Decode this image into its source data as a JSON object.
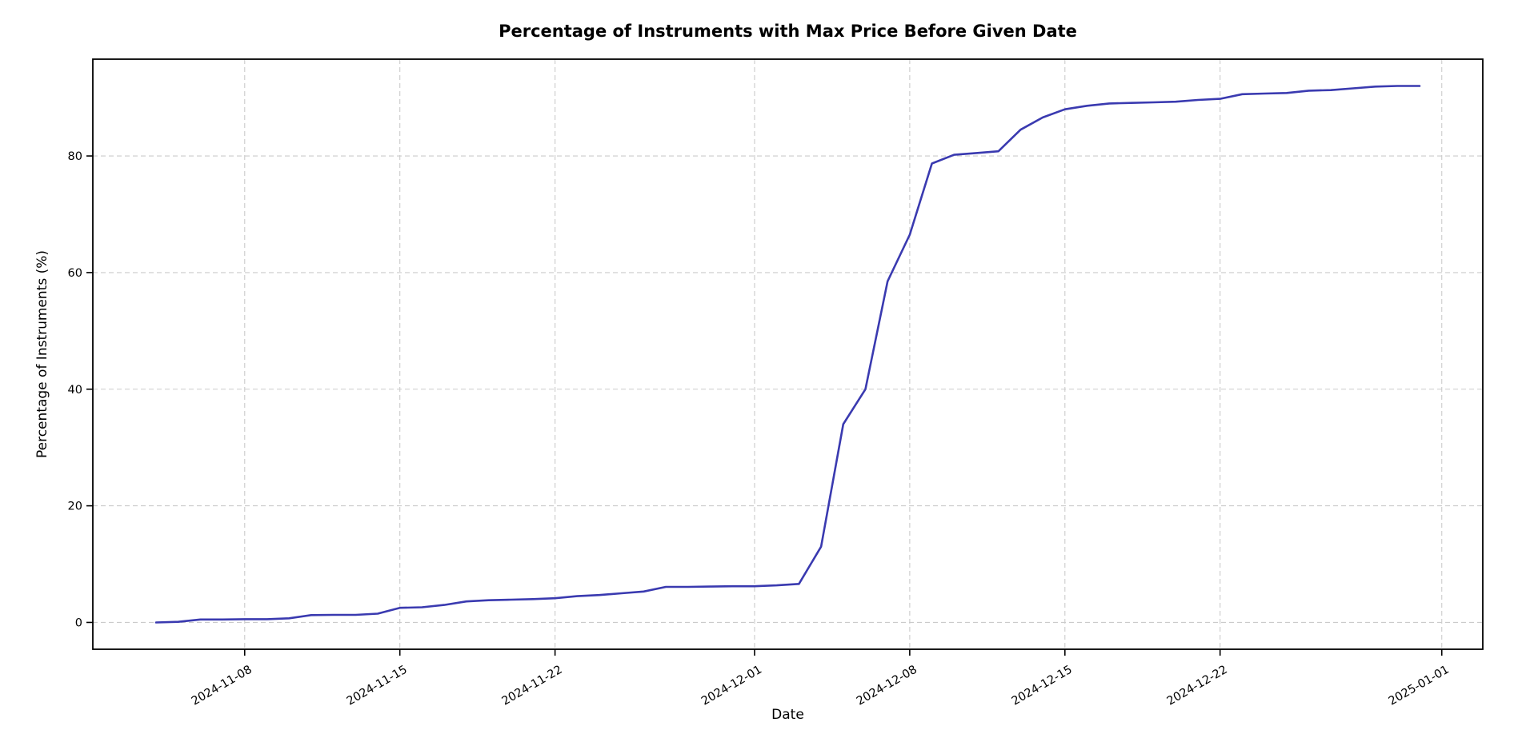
{
  "chart_data": {
    "type": "line",
    "title": "Percentage of Instruments with Max Price Before Given Date",
    "xlabel": "Date",
    "ylabel": "Percentage of Instruments (%)",
    "legend": null,
    "grid": true,
    "grid_style": "dashed",
    "grid_color": "#cbcbcb",
    "line_color": "#3a3ab0",
    "background_color": "#ffffff",
    "x_tick_labels": [
      "2024-11-08",
      "2024-11-15",
      "2024-11-22",
      "2024-12-01",
      "2024-12-08",
      "2024-12-15",
      "2024-12-22",
      "2025-01-01"
    ],
    "y_tick_labels": [
      "0",
      "20",
      "40",
      "60",
      "80"
    ],
    "y_ticks": [
      0,
      20,
      40,
      60,
      80
    ],
    "xlim": [
      "2024-11-01T03:36:00Z",
      "2025-01-02T20:24:00Z"
    ],
    "ylim": [
      -4.6,
      96.6
    ],
    "x": [
      "2024-11-04",
      "2024-11-05",
      "2024-11-06",
      "2024-11-07",
      "2024-11-08",
      "2024-11-09",
      "2024-11-10",
      "2024-11-11",
      "2024-11-12",
      "2024-11-13",
      "2024-11-14",
      "2024-11-15",
      "2024-11-16",
      "2024-11-17",
      "2024-11-18",
      "2024-11-19",
      "2024-11-20",
      "2024-11-21",
      "2024-11-22",
      "2024-11-23",
      "2024-11-24",
      "2024-11-25",
      "2024-11-26",
      "2024-11-27",
      "2024-11-28",
      "2024-11-29",
      "2024-11-30",
      "2024-12-01",
      "2024-12-02",
      "2024-12-03",
      "2024-12-04",
      "2024-12-05",
      "2024-12-06",
      "2024-12-07",
      "2024-12-08",
      "2024-12-09",
      "2024-12-10",
      "2024-12-11",
      "2024-12-12",
      "2024-12-13",
      "2024-12-14",
      "2024-12-15",
      "2024-12-16",
      "2024-12-17",
      "2024-12-18",
      "2024-12-19",
      "2024-12-20",
      "2024-12-21",
      "2024-12-22",
      "2024-12-23",
      "2024-12-24",
      "2024-12-25",
      "2024-12-26",
      "2024-12-27",
      "2024-12-28",
      "2024-12-29",
      "2024-12-30",
      "2024-12-31"
    ],
    "values": [
      0.0,
      0.1,
      0.5,
      0.5,
      0.55,
      0.55,
      0.7,
      1.25,
      1.3,
      1.3,
      1.5,
      2.5,
      2.6,
      3.0,
      3.6,
      3.8,
      3.9,
      4.0,
      4.15,
      4.5,
      4.7,
      5.0,
      5.3,
      6.1,
      6.1,
      6.15,
      6.2,
      6.2,
      6.35,
      6.6,
      13.0,
      34.0,
      40.0,
      58.5,
      66.5,
      78.7,
      80.2,
      80.5,
      80.8,
      84.5,
      86.6,
      88.0,
      88.6,
      89.0,
      89.1,
      89.2,
      89.3,
      89.6,
      89.8,
      90.6,
      90.7,
      90.8,
      91.2,
      91.3,
      91.6,
      91.9,
      92.0,
      92.0
    ]
  }
}
